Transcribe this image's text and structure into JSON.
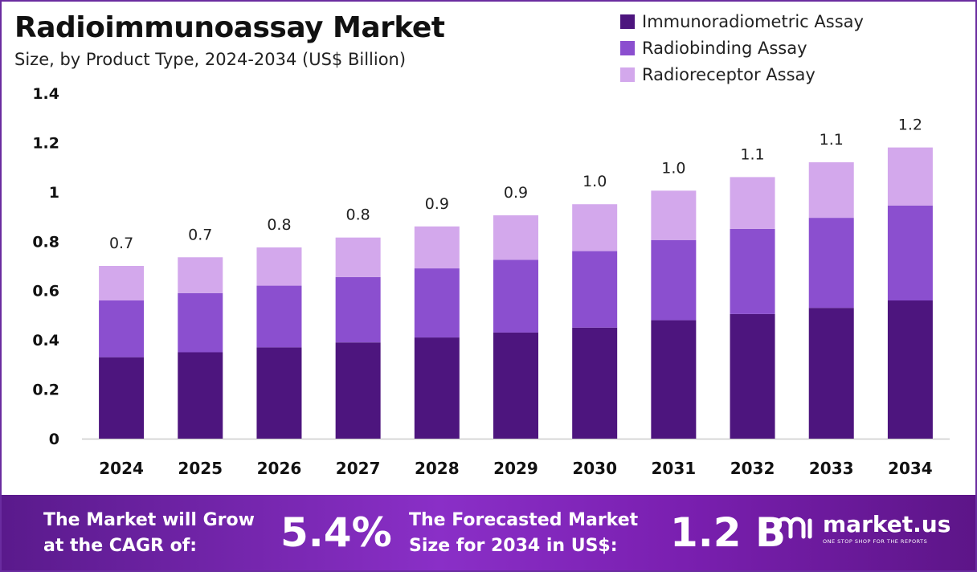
{
  "header": {
    "title": "Radioimmunoassay Market",
    "subtitle": "Size, by Product Type, 2024-2034 (US$ Billion)"
  },
  "colors": {
    "immunoradiometric": "#4d157e",
    "radiobinding": "#8b4fcf",
    "radioreceptor": "#d3a8ec",
    "axis": "#cccccc",
    "footer_accent": "#7a1fb0"
  },
  "chart_data": {
    "type": "bar",
    "stacked": true,
    "title": "Radioimmunoassay Market",
    "subtitle": "Size, by Product Type, 2024-2034 (US$ Billion)",
    "categories": [
      "2024",
      "2025",
      "2026",
      "2027",
      "2028",
      "2029",
      "2030",
      "2031",
      "2032",
      "2033",
      "2034"
    ],
    "series": [
      {
        "name": "Immunoradiometric Assay",
        "color": "#4d157e",
        "values": [
          0.33,
          0.35,
          0.37,
          0.39,
          0.41,
          0.43,
          0.45,
          0.48,
          0.505,
          0.53,
          0.56
        ]
      },
      {
        "name": "Radiobinding Assay",
        "color": "#8b4fcf",
        "values": [
          0.23,
          0.24,
          0.25,
          0.265,
          0.28,
          0.295,
          0.31,
          0.325,
          0.345,
          0.365,
          0.385
        ]
      },
      {
        "name": "Radioreceptor Assay",
        "color": "#d3a8ec",
        "values": [
          0.14,
          0.145,
          0.155,
          0.16,
          0.17,
          0.18,
          0.19,
          0.2,
          0.21,
          0.225,
          0.235
        ]
      }
    ],
    "totals_labels": [
      "0.7",
      "0.7",
      "0.8",
      "0.8",
      "0.9",
      "0.9",
      "1.0",
      "1.0",
      "1.1",
      "1.1",
      "1.2"
    ],
    "y_ticks": [
      "0",
      "0.2",
      "0.4",
      "0.6",
      "0.8",
      "1",
      "1.2",
      "1.4"
    ],
    "ylim": [
      0,
      1.4
    ],
    "grid": false,
    "legend_position": "top-right"
  },
  "legend": [
    {
      "label": "Immunoradiometric Assay",
      "color": "#4d157e"
    },
    {
      "label": "Radiobinding Assay",
      "color": "#8b4fcf"
    },
    {
      "label": "Radioreceptor Assay",
      "color": "#d3a8ec"
    }
  ],
  "footer": {
    "cagr_text_line1": "The Market will Grow",
    "cagr_text_line2": "at the CAGR of:",
    "cagr_value": "5.4%",
    "forecast_text_line1": "The Forecasted Market",
    "forecast_text_line2": "Size for 2034 in US$:",
    "forecast_value": "1.2 B",
    "brand_name": "market.us",
    "brand_tagline": "ONE STOP SHOP FOR THE REPORTS"
  }
}
